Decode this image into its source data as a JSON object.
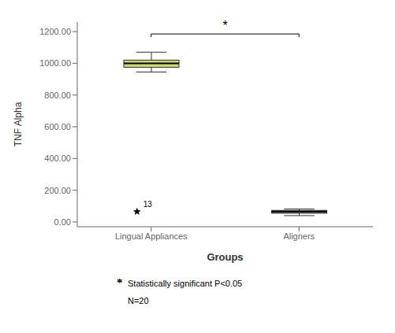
{
  "chart_data": {
    "type": "box",
    "categories": [
      "Lingual Appliances",
      "Aligners"
    ],
    "boxes": [
      {
        "q1": 975,
        "median": 1000,
        "q3": 1020,
        "whisker_low": 945,
        "whisker_high": 1070,
        "color": "#d4d96e",
        "outliers": [
          {
            "value": 65,
            "label": "13"
          }
        ]
      },
      {
        "q1": 55,
        "median": 65,
        "q3": 73,
        "whisker_low": 40,
        "whisker_high": 82,
        "color": "#888888",
        "outliers": []
      }
    ],
    "xlabel": "Groups",
    "ylabel": "TNF Alpha",
    "ylim": [
      -30,
      1260
    ],
    "yticks": [
      {
        "value": 0,
        "label": "0.00"
      },
      {
        "value": 200,
        "label": "200.00"
      },
      {
        "value": 400,
        "label": "400.00"
      },
      {
        "value": 600,
        "label": "600.00"
      },
      {
        "value": 800,
        "label": "800.00"
      },
      {
        "value": 1000,
        "label": "1000.00"
      },
      {
        "value": 1200,
        "label": "1200.00"
      }
    ],
    "annotations": [
      {
        "type": "bracket",
        "between": [
          "Lingual Appliances",
          "Aligners"
        ],
        "y": 1185,
        "y_end": 1165,
        "text": "*"
      }
    ],
    "footnotes": [
      {
        "mark": "*",
        "text": "Statistically significant P<0.05"
      },
      {
        "text": "N=20"
      }
    ]
  }
}
